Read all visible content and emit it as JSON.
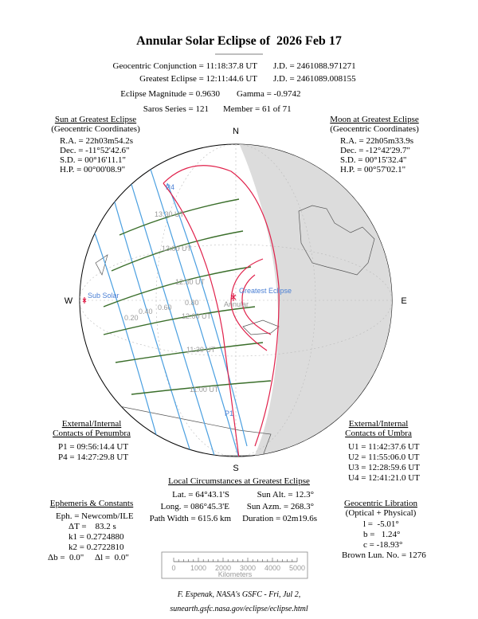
{
  "header": {
    "title": "Annular Solar Eclipse of  2026 Feb 17",
    "lines": [
      [
        "Geocentric Conjunction = 11:18:37.8 UT",
        "J.D. = 2461088.971271"
      ],
      [
        "Greatest Eclipse = 12:11:44.6 UT",
        "J.D. = 2461089.008155"
      ],
      [
        "Eclipse Magnitude = 0.9630",
        "Gamma = -0.9742"
      ],
      [
        "Saros Series = 121",
        "Member = 61 of 71"
      ]
    ]
  },
  "sun": {
    "title": "Sun at Greatest Eclipse",
    "subtitle": "(Geocentric Coordinates)",
    "lines": [
      "R.A. = 22h03m54.2s",
      "Dec. = -11°52'42.6\"",
      "S.D. = 00°16'11.1\"",
      "H.P. = 00°00'08.9\""
    ]
  },
  "moon": {
    "title": "Moon at Greatest Eclipse",
    "subtitle": "(Geocentric Coordinates)",
    "lines": [
      "R.A. = 22h05m33.9s",
      "Dec. = -12°42'29.7\"",
      "S.D. = 00°15'32.4\"",
      "H.P. = 00°57'02.1\""
    ]
  },
  "map": {
    "north": "N",
    "south": "S",
    "west": "W",
    "east": "E",
    "sub_solar": "Sub Solar",
    "greatest": "Greatest Eclipse",
    "annular": "Annular",
    "p4": "P4",
    "p1": "P1",
    "times": [
      "13:30 UT",
      "13:00 UT",
      "12:30 UT",
      "12:00 UT",
      "11:30 UT",
      "11:00 UT"
    ],
    "magnitudes": [
      "0.20",
      "0.40",
      "0.60",
      "0.80"
    ]
  },
  "penumbra": {
    "title": "External/Internal",
    "subtitle": "Contacts of Penumbra",
    "lines": [
      "P1 = 09:56:14.4 UT",
      "P4 = 14:27:29.8 UT"
    ]
  },
  "umbra": {
    "title": "External/Internal",
    "subtitle": "Contacts of Umbra",
    "lines": [
      "U1 = 11:42:37.6 UT",
      "U2 = 11:55:06.0 UT",
      "U3 = 12:28:59.6 UT",
      "U4 = 12:41:21.0 UT"
    ]
  },
  "local": {
    "title": "Local Circumstances at Greatest Eclipse",
    "left": [
      "Lat. = 64°43.1'S",
      "Long. = 086°45.3'E",
      "Path Width = 615.6 km"
    ],
    "right": [
      "Sun Alt. = 12.3°",
      "Sun Azm. = 268.3°",
      "Duration = 02m19.6s"
    ]
  },
  "ephemeris": {
    "title": "Ephemeris & Constants",
    "lines": [
      "Eph. = Newcomb/ILE",
      "ΔT =    83.2 s",
      "k1 = 0.2724880",
      "k2 = 0.2722810",
      "Δb =  0.0\"     Δl =  0.0\""
    ]
  },
  "libration": {
    "title": "Geocentric Libration",
    "subtitle": "(Optical + Physical)",
    "lines": [
      "l =  -5.01°",
      "b =   1.24°",
      "c = -18.93°",
      "Brown Lun. No. = 1276"
    ]
  },
  "scale": {
    "labels": [
      "0",
      "1000",
      "2000",
      "3000",
      "4000",
      "5000"
    ],
    "unit": "Kilometers"
  },
  "footer": {
    "credit": "F. Espenak, NASA's GSFC - Fri, Jul 2,",
    "url": "sunearth.gsfc.nasa.gov/eclipse/eclipse.html"
  }
}
